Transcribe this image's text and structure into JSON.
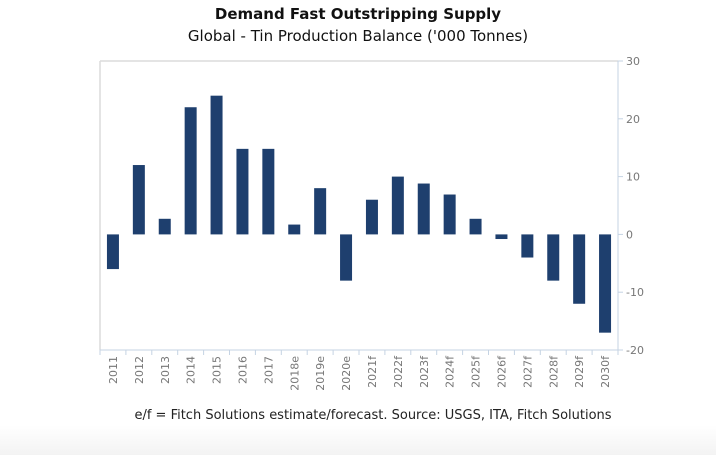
{
  "chart_data": {
    "type": "bar",
    "title": "Demand Fast Outstripping Supply",
    "subtitle": "Global - Tin Production Balance ('000 Tonnes)",
    "xlabel": "",
    "ylabel": "",
    "ylim": [
      -20,
      30
    ],
    "yticks": [
      30,
      20,
      10,
      0,
      -10,
      -20
    ],
    "y_axis_side": "right",
    "grid": false,
    "categories": [
      "2011",
      "2012",
      "2013",
      "2014",
      "2015",
      "2016",
      "2017",
      "2018e",
      "2019e",
      "2020e",
      "2021f",
      "2022f",
      "2023f",
      "2024f",
      "2025f",
      "2026f",
      "2027f",
      "2028f",
      "2029f",
      "2030f"
    ],
    "values": [
      -6,
      12,
      2.7,
      22,
      24,
      14.8,
      14.8,
      1.7,
      8,
      -8,
      6,
      10,
      8.8,
      6.9,
      2.7,
      -0.8,
      -4,
      -8,
      -12,
      -17
    ],
    "bar_color": "#1e3f6e",
    "footnote": "e/f = Fitch Solutions estimate/forecast. Source: USGS, ITA, Fitch Solutions"
  }
}
